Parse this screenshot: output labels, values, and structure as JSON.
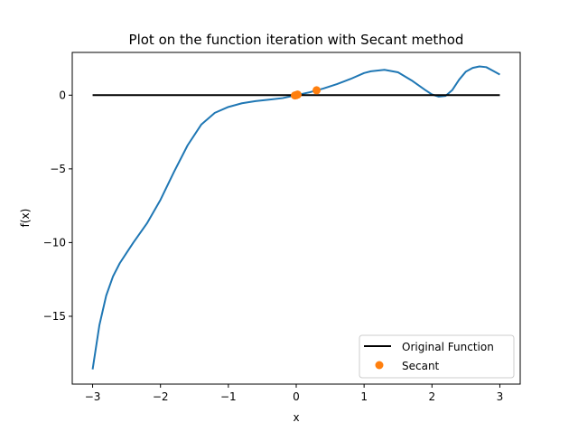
{
  "chart_data": {
    "type": "line",
    "title": "Plot on the function iteration with Secant method",
    "xlabel": "x",
    "ylabel": "f(x)",
    "xlim": [
      -3.3,
      3.3
    ],
    "ylim": [
      -19.6,
      2.9
    ],
    "xticks": [
      -3,
      -2,
      -1,
      0,
      1,
      2,
      3
    ],
    "xtick_labels": [
      "−3",
      "−2",
      "−1",
      "0",
      "1",
      "2",
      "3"
    ],
    "yticks": [
      -15,
      -10,
      -5,
      0
    ],
    "ytick_labels": [
      "−15",
      "−10",
      "−5",
      "0"
    ],
    "grid": false,
    "legend": {
      "placement": "lower-right",
      "entries": [
        "Original Function",
        "Secant"
      ]
    },
    "series": [
      {
        "name": "",
        "kind": "line",
        "color": "#1f77b4",
        "x": [
          -3.0,
          -2.9,
          -2.8,
          -2.7,
          -2.6,
          -2.5,
          -2.4,
          -2.2,
          -2.0,
          -1.8,
          -1.6,
          -1.4,
          -1.2,
          -1.0,
          -0.8,
          -0.6,
          -0.4,
          -0.2,
          0.0,
          0.2,
          0.4,
          0.6,
          0.8,
          1.0,
          1.1,
          1.3,
          1.5,
          1.7,
          1.9,
          2.0,
          2.1,
          2.2,
          2.3,
          2.4,
          2.5,
          2.6,
          2.7,
          2.8,
          2.9,
          3.0
        ],
        "y": [
          -18.6,
          -15.6,
          -13.6,
          -12.3,
          -11.4,
          -10.7,
          -10.0,
          -8.7,
          -7.1,
          -5.2,
          -3.4,
          -2.0,
          -1.2,
          -0.8,
          -0.55,
          -0.4,
          -0.3,
          -0.2,
          0.0,
          0.2,
          0.45,
          0.75,
          1.1,
          1.5,
          1.62,
          1.72,
          1.55,
          1.0,
          0.35,
          0.05,
          -0.1,
          -0.05,
          0.35,
          1.05,
          1.6,
          1.85,
          1.95,
          1.9,
          1.65,
          1.4
        ]
      },
      {
        "name": "Original Function",
        "kind": "line",
        "color": "#000000",
        "x": [
          -3.0,
          3.0
        ],
        "y": [
          0.0,
          0.0
        ]
      },
      {
        "name": "Secant",
        "kind": "scatter",
        "color": "#ff7f0e",
        "x": [
          0.3,
          0.02,
          -0.02,
          0.0
        ],
        "y": [
          0.33,
          0.04,
          -0.02,
          0.0
        ]
      }
    ]
  }
}
